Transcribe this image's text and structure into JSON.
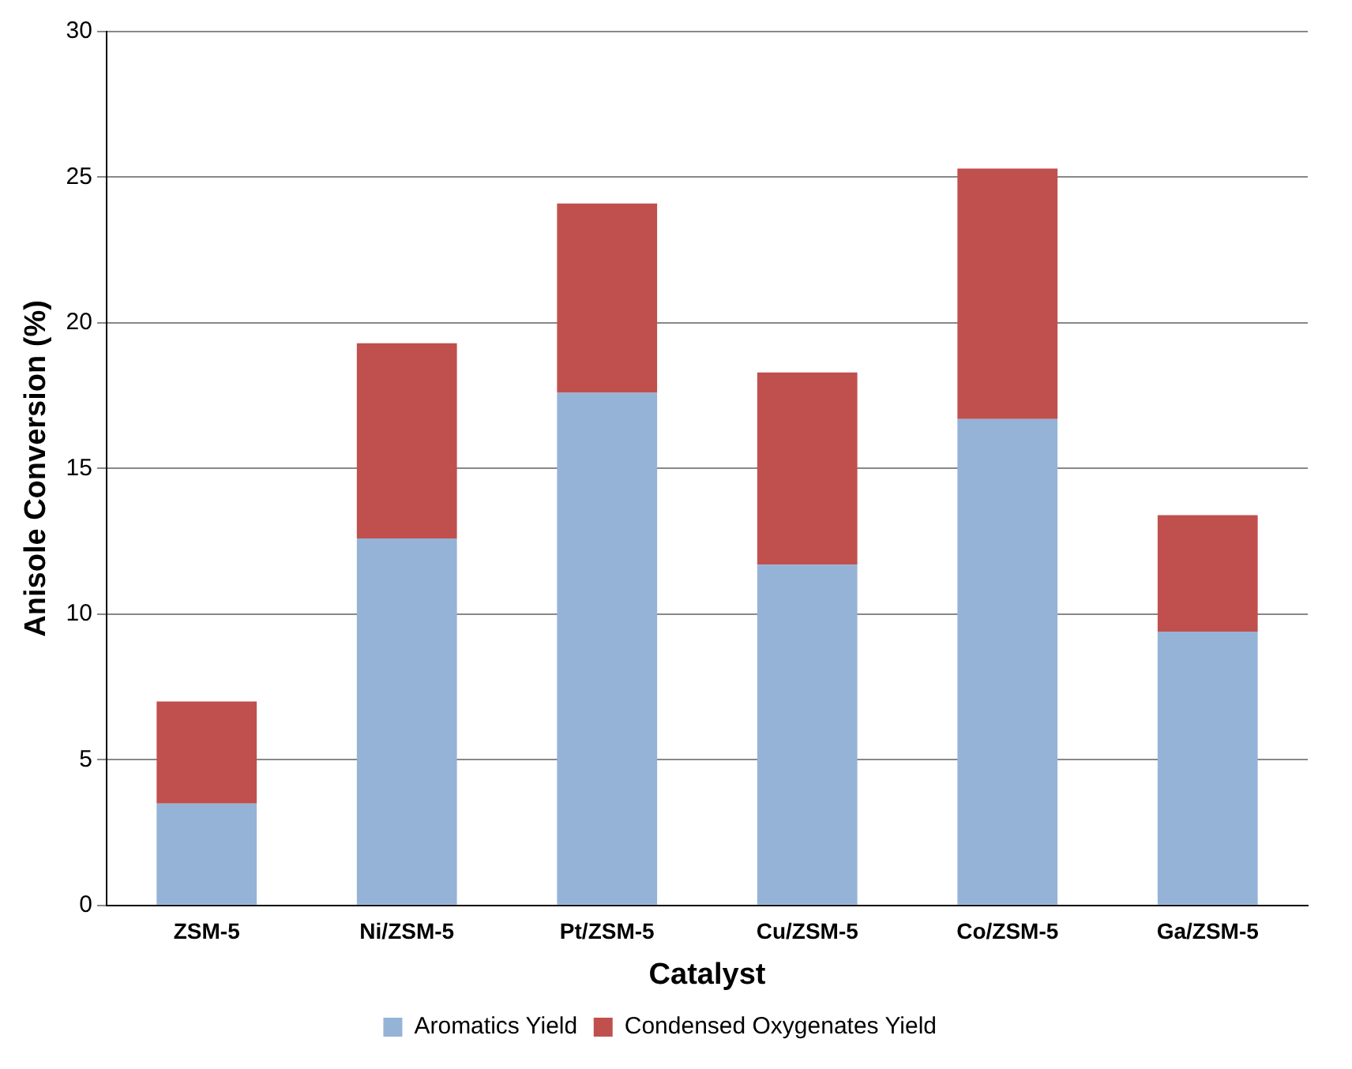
{
  "chart_data": {
    "type": "bar",
    "stacked": true,
    "xlabel": "Catalyst",
    "ylabel": "Anisole Conversion (%)",
    "categories": [
      "ZSM-5",
      "Ni/ZSM-5",
      "Pt/ZSM-5",
      "Cu/ZSM-5",
      "Co/ZSM-5",
      "Ga/ZSM-5"
    ],
    "series": [
      {
        "name": "Aromatics Yield",
        "color": "#95b3d7",
        "values": [
          3.5,
          12.6,
          17.6,
          11.7,
          16.7,
          9.4
        ]
      },
      {
        "name": "Condensed Oxygenates Yield",
        "color": "#c0504d",
        "values": [
          3.5,
          6.7,
          6.5,
          6.6,
          8.6,
          4.0
        ]
      }
    ],
    "ylim": [
      0,
      30
    ],
    "yticks": [
      0,
      5,
      10,
      15,
      20,
      25,
      30
    ],
    "grid": "y",
    "legend": "bottom"
  }
}
